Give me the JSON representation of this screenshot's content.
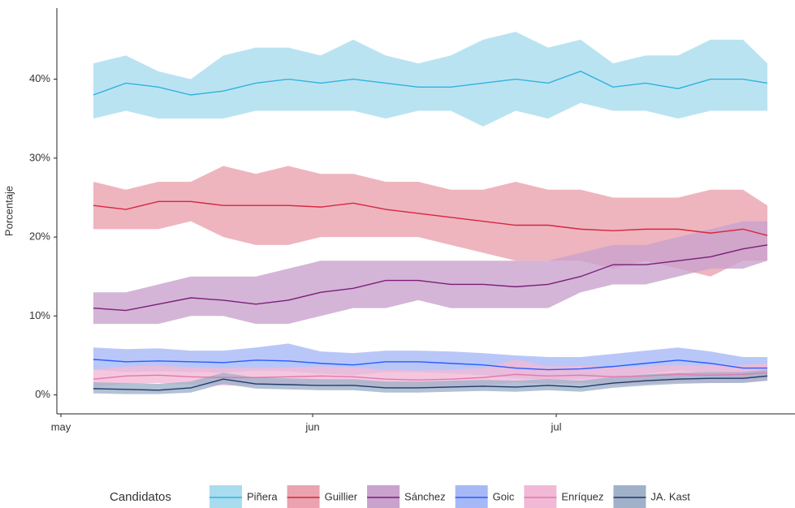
{
  "chart_data": {
    "type": "line",
    "y_label": "Porcentaje",
    "legend_title": "Candidatos",
    "legend": "bottom",
    "x": [
      4,
      8,
      12,
      16,
      20,
      24,
      28,
      32,
      36,
      40,
      44,
      48,
      52,
      56,
      60,
      64,
      68,
      72,
      76,
      80,
      84,
      87
    ],
    "xlim": [
      -0.5,
      90.4
    ],
    "xticks": [
      {
        "value": 0,
        "label": "may"
      },
      {
        "value": 31,
        "label": "jun"
      },
      {
        "value": 61,
        "label": "jul"
      }
    ],
    "ylim": [
      -2.4,
      49
    ],
    "yticks": [
      {
        "value": 0,
        "label": "0%"
      },
      {
        "value": 10,
        "label": "10%"
      },
      {
        "value": 20,
        "label": "20%"
      },
      {
        "value": 30,
        "label": "30%"
      },
      {
        "value": 40,
        "label": "40%"
      }
    ],
    "series": [
      {
        "name": "Piñera",
        "color": "#2fb3de",
        "band_color": "#a9dcef",
        "values": [
          38,
          39.5,
          39,
          38,
          38.5,
          39.5,
          40,
          39.5,
          40,
          39.5,
          39,
          39,
          39.5,
          40,
          39.5,
          41,
          39,
          39.5,
          38.8,
          40,
          40,
          39.5
        ],
        "upper": [
          42,
          43,
          41,
          40,
          43,
          44,
          44,
          43,
          45,
          43,
          42,
          43,
          45,
          46,
          44,
          45,
          42,
          43,
          43,
          45,
          45,
          42
        ],
        "lower": [
          35,
          36,
          35,
          35,
          35,
          36,
          36,
          36,
          36,
          35,
          36,
          36,
          34,
          36,
          35,
          37,
          36,
          36,
          35,
          36,
          36,
          36
        ]
      },
      {
        "name": "Guillier",
        "color": "#d7263d",
        "band_color": "#eaa3af",
        "values": [
          24,
          23.5,
          24.5,
          24.5,
          24,
          24,
          24,
          23.8,
          24.3,
          23.5,
          23,
          22.5,
          22,
          21.5,
          21.5,
          21,
          20.8,
          21,
          21,
          20.5,
          21,
          20.2
        ],
        "upper": [
          27,
          26,
          27,
          27,
          29,
          28,
          29,
          28,
          28,
          27,
          27,
          26,
          26,
          27,
          26,
          26,
          25,
          25,
          25,
          26,
          26,
          24
        ],
        "lower": [
          21,
          21,
          21,
          22,
          20,
          19,
          19,
          20,
          20,
          20,
          20,
          19,
          18,
          17,
          17,
          17,
          16,
          17,
          16,
          15,
          17,
          17
        ]
      },
      {
        "name": "Sánchez",
        "color": "#7b1e7a",
        "band_color": "#c9a2cd",
        "values": [
          11,
          10.7,
          11.5,
          12.3,
          12,
          11.5,
          12,
          13,
          13.5,
          14.5,
          14.5,
          14,
          14,
          13.7,
          14,
          15,
          16.5,
          16.5,
          17,
          17.5,
          18.5,
          19
        ],
        "upper": [
          13,
          13,
          14,
          15,
          15,
          15,
          16,
          17,
          17,
          17,
          17,
          17,
          17,
          17,
          17,
          18,
          19,
          19,
          20,
          21,
          22,
          22
        ],
        "lower": [
          9,
          9,
          9,
          10,
          10,
          9,
          9,
          10,
          11,
          11,
          12,
          11,
          11,
          11,
          11,
          13,
          14,
          14,
          15,
          16,
          16,
          17
        ]
      },
      {
        "name": "Goic",
        "color": "#2d5bff",
        "band_color": "#a6b9f6",
        "values": [
          4.5,
          4.2,
          4.3,
          4.2,
          4.1,
          4.4,
          4.3,
          4,
          3.8,
          4.2,
          4.2,
          4,
          3.8,
          3.4,
          3.2,
          3.3,
          3.6,
          4,
          4.4,
          4,
          3.4,
          3.4
        ],
        "upper": [
          6,
          5.8,
          5.9,
          5.6,
          5.6,
          6,
          6.5,
          5.5,
          5.3,
          5.6,
          5.6,
          5.5,
          5.3,
          5,
          4.8,
          4.8,
          5.2,
          5.6,
          6,
          5.5,
          4.8,
          4.8
        ],
        "lower": [
          3.2,
          2.9,
          3,
          2.9,
          2.8,
          3.1,
          3,
          2.7,
          2.5,
          2.9,
          2.9,
          2.7,
          2.5,
          2.1,
          1.9,
          2,
          2.3,
          2.7,
          3.1,
          2.7,
          2.1,
          2.1
        ]
      },
      {
        "name": "Enríquez",
        "color": "#e377b0",
        "band_color": "#f2b9d6",
        "values": [
          2,
          2.4,
          2.5,
          2.3,
          2.2,
          2.2,
          2.3,
          2.4,
          2.3,
          2,
          1.9,
          2,
          2.2,
          2.6,
          2.4,
          2.5,
          2.3,
          2.4,
          2.6,
          2.5,
          2.6,
          2.8
        ],
        "upper": [
          3.2,
          3.6,
          3.7,
          3.5,
          3.4,
          3.4,
          3.5,
          3.6,
          3.5,
          3.2,
          3.1,
          3.2,
          3.4,
          4.5,
          3.6,
          3.7,
          3.5,
          3.6,
          3.8,
          3.7,
          3.8,
          4
        ],
        "lower": [
          1,
          1.4,
          1.5,
          1.3,
          1.2,
          1.2,
          1.3,
          1.4,
          1.3,
          1,
          0.9,
          1,
          1.2,
          1.6,
          1.4,
          1.5,
          1.3,
          1.4,
          1.6,
          1.5,
          1.6,
          1.8
        ]
      },
      {
        "name": "JA. Kast",
        "color": "#1f3a6b",
        "band_color": "#a0b1c9",
        "values": [
          0.8,
          0.7,
          0.6,
          0.9,
          2,
          1.4,
          1.3,
          1.2,
          1.2,
          0.9,
          0.9,
          1,
          1.1,
          1,
          1.2,
          1,
          1.5,
          1.8,
          2,
          2.1,
          2.1,
          2.4
        ],
        "upper": [
          1.6,
          1.5,
          1.4,
          1.7,
          2.8,
          2.2,
          2.1,
          2,
          2,
          1.7,
          1.7,
          1.8,
          1.9,
          1.8,
          2,
          1.8,
          2.3,
          2.6,
          2.8,
          2.9,
          2.9,
          3.2
        ],
        "lower": [
          0.2,
          0.1,
          0.1,
          0.3,
          1.4,
          0.8,
          0.7,
          0.6,
          0.6,
          0.3,
          0.3,
          0.4,
          0.5,
          0.4,
          0.6,
          0.4,
          0.9,
          1.2,
          1.4,
          1.5,
          1.5,
          1.8
        ]
      }
    ]
  }
}
